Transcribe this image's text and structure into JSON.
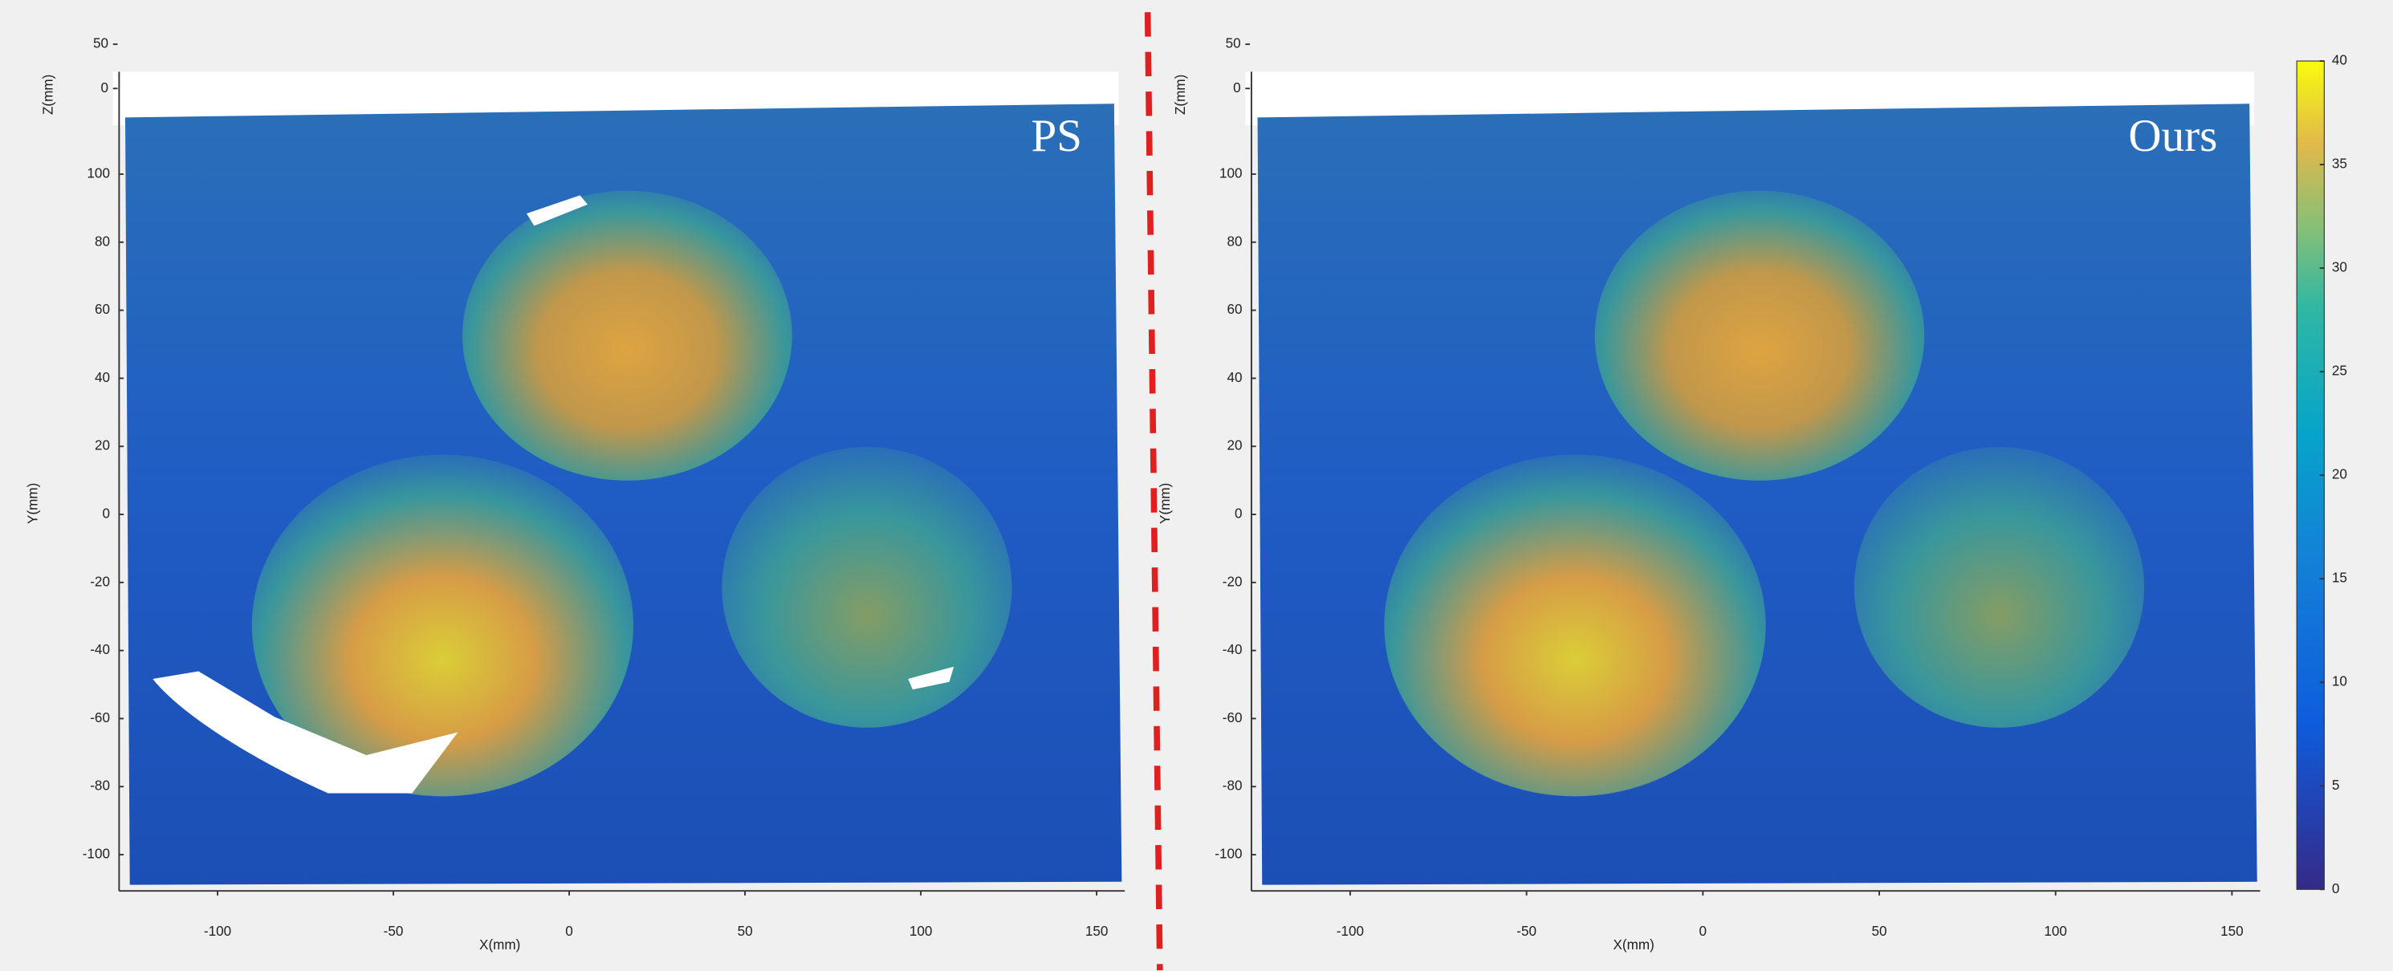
{
  "chart_data": [
    {
      "type": "surface",
      "title": "PS",
      "xlabel": "X(mm)",
      "ylabel": "Y(mm)",
      "zlabel": "Z(mm)",
      "xlim": [
        -128,
        158
      ],
      "xticks": [
        -100,
        -50,
        0,
        50,
        100,
        150
      ],
      "ylim": [
        -112,
        118
      ],
      "yticks": [
        -100,
        -80,
        -60,
        -40,
        -20,
        0,
        20,
        40,
        60,
        80,
        100
      ],
      "zlim": [
        0,
        50
      ],
      "zticks": [
        0,
        50
      ]
    },
    {
      "type": "surface",
      "title": "Ours",
      "xlabel": "X(mm)",
      "ylabel": "Y(mm)",
      "zlabel": "Z(mm)",
      "xlim": [
        -128,
        158
      ],
      "xticks": [
        -100,
        -50,
        0,
        50,
        100,
        150
      ],
      "ylim": [
        -112,
        118
      ],
      "yticks": [
        -100,
        -80,
        -60,
        -40,
        -20,
        0,
        20,
        40,
        60,
        80,
        100
      ],
      "zlim": [
        0,
        50
      ],
      "zticks": [
        0,
        50
      ],
      "colorbar": {
        "lim": [
          0,
          40
        ],
        "ticks": [
          0,
          5,
          10,
          15,
          20,
          25,
          30,
          35,
          40
        ]
      }
    }
  ]
}
